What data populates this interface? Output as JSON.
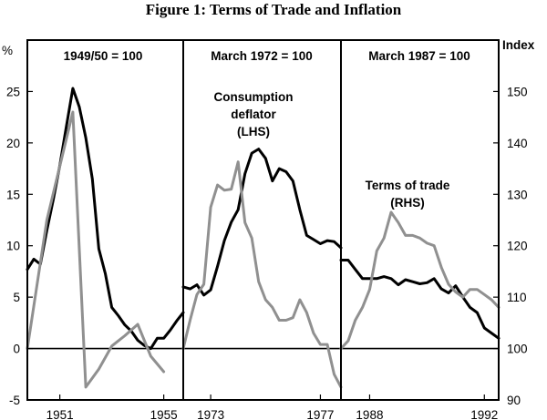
{
  "chart_data": {
    "type": "line",
    "title": "Figure 1: Terms of Trade and Inflation",
    "left_axis": {
      "unit_label": "%",
      "ylim": [
        -5,
        30
      ],
      "ticks": [
        -5,
        0,
        5,
        10,
        15,
        20,
        25
      ]
    },
    "right_axis": {
      "unit_label": "Index",
      "ylim": [
        90,
        160
      ],
      "ticks": [
        90,
        100,
        110,
        120,
        130,
        140,
        150
      ]
    },
    "panels": [
      {
        "base_label": "1949/50 = 100",
        "xlim": [
          1949.75,
          1955.75
        ],
        "x_ticks": [
          1951,
          1955
        ],
        "x_tick_labels": [
          "1951",
          "1955"
        ],
        "series": [
          {
            "name": "Consumption deflator",
            "axis": "left",
            "color": "#000000",
            "x": [
              1949.75,
              1950.0,
              1950.25,
              1950.5,
              1950.75,
              1951.0,
              1951.25,
              1951.5,
              1951.75,
              1952.0,
              1952.25,
              1952.5,
              1952.75,
              1953.0,
              1953.25,
              1953.5,
              1953.75,
              1954.0,
              1954.25,
              1954.5,
              1954.75,
              1955.0,
              1955.25,
              1955.5,
              1955.75
            ],
            "values": [
              7.7,
              8.7,
              8.2,
              11.5,
              14.5,
              17.8,
              21.6,
              25.3,
              23.5,
              20.5,
              16.5,
              9.7,
              7.3,
              4.0,
              3.2,
              2.3,
              1.7,
              0.8,
              0.3,
              0.0,
              1.0,
              1.0,
              1.8,
              2.7,
              3.5
            ]
          },
          {
            "name": "Terms of trade",
            "axis": "right",
            "color": "#909090",
            "x": [
              1949.75,
              1950.5,
              1951.5,
              1952.0,
              1952.5,
              1953.0,
              1953.5,
              1954.0,
              1954.5,
              1955.0
            ],
            "values": [
              100.0,
              125.0,
              146.0,
              92.5,
              96.0,
              100.5,
              102.5,
              104.7,
              98.5,
              95.5
            ]
          }
        ]
      },
      {
        "base_label": "March 1972 = 100",
        "xlim": [
          1972.0,
          1977.75
        ],
        "x_ticks": [
          1973,
          1977
        ],
        "x_tick_labels": [
          "1973",
          "1977"
        ],
        "annotations": [
          {
            "lines": [
              "Consumption",
              "deflator",
              "(LHS)"
            ]
          }
        ],
        "series": [
          {
            "name": "Consumption deflator",
            "axis": "left",
            "color": "#000000",
            "x": [
              1972.0,
              1972.25,
              1972.5,
              1972.75,
              1973.0,
              1973.25,
              1973.5,
              1973.75,
              1974.0,
              1974.25,
              1974.5,
              1974.75,
              1975.0,
              1975.25,
              1975.5,
              1975.75,
              1976.0,
              1976.25,
              1976.5,
              1976.75,
              1977.0,
              1977.25,
              1977.5,
              1977.75
            ],
            "values": [
              6.0,
              5.8,
              6.2,
              5.2,
              5.7,
              8.0,
              10.5,
              12.3,
              13.5,
              17.0,
              19.0,
              19.4,
              18.5,
              16.3,
              17.5,
              17.2,
              16.3,
              13.5,
              11.0,
              10.6,
              10.2,
              10.5,
              10.4,
              9.8
            ]
          },
          {
            "name": "Terms of trade",
            "axis": "right",
            "color": "#909090",
            "x": [
              1972.0,
              1972.25,
              1972.5,
              1972.75,
              1973.0,
              1973.25,
              1973.5,
              1973.75,
              1974.0,
              1974.25,
              1974.5,
              1974.75,
              1975.0,
              1975.25,
              1975.5,
              1975.75,
              1976.0,
              1976.25,
              1976.5,
              1976.75,
              1977.0,
              1977.25,
              1977.5,
              1977.75
            ],
            "values": [
              100.0,
              105.5,
              110.5,
              112.5,
              127.5,
              131.8,
              130.8,
              131.0,
              136.3,
              124.5,
              121.5,
              113.0,
              109.5,
              108.0,
              105.5,
              105.5,
              106.0,
              109.5,
              107.0,
              103.0,
              100.8,
              100.8,
              95.0,
              92.5
            ]
          }
        ]
      },
      {
        "base_label": "March 1987 = 100",
        "xlim": [
          1987.0,
          1992.5
        ],
        "x_ticks": [
          1988,
          1992
        ],
        "x_tick_labels": [
          "1988",
          "1992"
        ],
        "annotations": [
          {
            "lines": [
              "Terms of trade",
              "(RHS)"
            ]
          }
        ],
        "series": [
          {
            "name": "Consumption deflator",
            "axis": "left",
            "color": "#000000",
            "x": [
              1987.0,
              1987.25,
              1987.5,
              1987.75,
              1988.0,
              1988.25,
              1988.5,
              1988.75,
              1989.0,
              1989.25,
              1989.5,
              1989.75,
              1990.0,
              1990.25,
              1990.5,
              1990.75,
              1991.0,
              1991.25,
              1991.5,
              1991.75,
              1992.0,
              1992.25,
              1992.5
            ],
            "values": [
              8.6,
              8.6,
              7.7,
              6.8,
              6.8,
              6.8,
              7.0,
              6.8,
              6.2,
              6.7,
              6.5,
              6.3,
              6.4,
              6.8,
              5.8,
              5.4,
              6.1,
              5.0,
              4.0,
              3.5,
              2.0,
              1.5,
              1.0
            ]
          },
          {
            "name": "Terms of trade",
            "axis": "right",
            "color": "#909090",
            "x": [
              1987.0,
              1987.25,
              1987.5,
              1987.75,
              1988.0,
              1988.25,
              1988.5,
              1988.75,
              1989.0,
              1989.25,
              1989.5,
              1989.75,
              1990.0,
              1990.25,
              1990.5,
              1990.75,
              1991.0,
              1991.25,
              1991.5,
              1991.75,
              1992.0,
              1992.25,
              1992.5
            ],
            "values": [
              100.0,
              101.5,
              105.5,
              108.0,
              111.5,
              119.0,
              121.5,
              126.5,
              124.5,
              122.0,
              122.0,
              121.5,
              120.5,
              120.0,
              115.8,
              112.5,
              111.0,
              110.0,
              111.5,
              111.5,
              110.5,
              109.5,
              108.0
            ]
          }
        ]
      }
    ]
  }
}
